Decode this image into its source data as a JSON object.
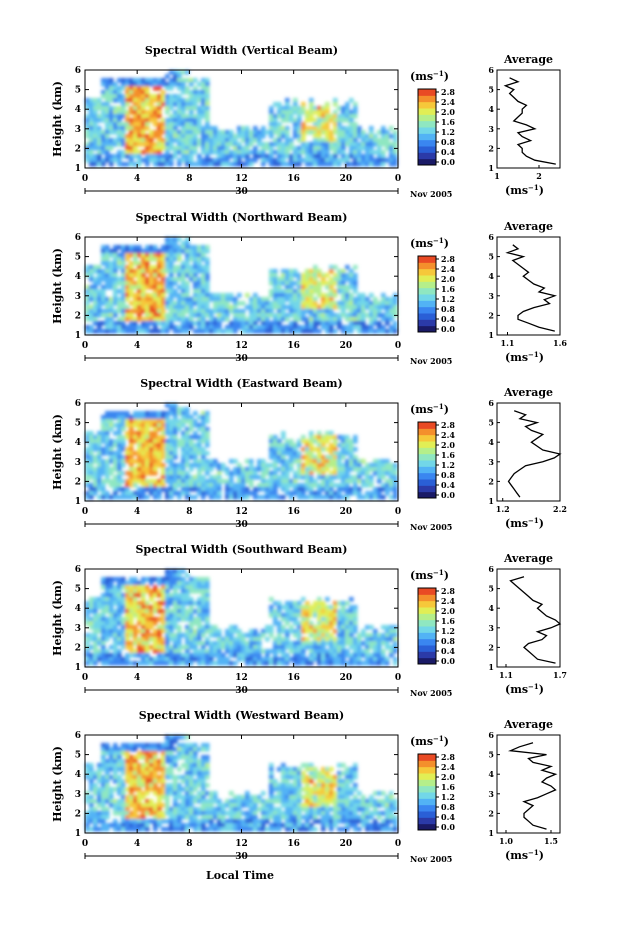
{
  "figure": {
    "xlabel": "Local Time",
    "date_label": "Nov 2005",
    "day_label": "30",
    "colorbar_label": "(ms",
    "colorbar_exp": "−1",
    "avg_title": "Average",
    "avg_unit": "(ms",
    "avg_unit_exp": "−1",
    "colors": {
      "colormap": [
        "#1a1a66",
        "#2b3aa8",
        "#2a5fd6",
        "#3a86f0",
        "#52b3f5",
        "#72d7e8",
        "#8fe7c1",
        "#b5ef8a",
        "#e1ee55",
        "#f6c83a",
        "#f48f2c",
        "#e94a24"
      ]
    }
  },
  "chart_data": [
    {
      "type": "heatmap",
      "title": "Spectral Width (Vertical Beam)",
      "ylabel": "Height (km)",
      "x_ticks": [
        "0",
        "4",
        "8",
        "12",
        "16",
        "20",
        "0"
      ],
      "x_range": [
        0,
        24
      ],
      "y_ticks": [
        "1",
        "2",
        "3",
        "4",
        "5",
        "6"
      ],
      "y_range": [
        1,
        6
      ],
      "colorbar_ticks": [
        "0.0",
        "0.4",
        "0.8",
        "1.2",
        "1.6",
        "2.0",
        "2.4",
        "2.8"
      ],
      "avg_profile": {
        "x_ticks": [
          "1",
          "2"
        ],
        "x_range": [
          1,
          2.5
        ],
        "height": [
          1.2,
          1.4,
          1.6,
          1.8,
          2.0,
          2.2,
          2.4,
          2.6,
          2.8,
          3.0,
          3.2,
          3.4,
          3.6,
          3.8,
          4.0,
          4.2,
          4.4,
          4.6,
          4.8,
          5.0,
          5.2,
          5.4,
          5.6
        ],
        "width": [
          2.4,
          1.9,
          1.7,
          1.6,
          1.6,
          1.5,
          1.8,
          1.6,
          1.5,
          1.9,
          1.7,
          1.4,
          1.5,
          1.6,
          1.6,
          1.7,
          1.5,
          1.4,
          1.3,
          1.4,
          1.2,
          1.5,
          1.3
        ]
      }
    },
    {
      "type": "heatmap",
      "title": "Spectral Width (Northward Beam)",
      "ylabel": "Height (km)",
      "x_ticks": [
        "0",
        "4",
        "8",
        "12",
        "16",
        "20",
        "0"
      ],
      "x_range": [
        0,
        24
      ],
      "y_ticks": [
        "1",
        "2",
        "3",
        "4",
        "5",
        "6"
      ],
      "y_range": [
        1,
        6
      ],
      "colorbar_ticks": [
        "0.0",
        "0.4",
        "0.8",
        "1.2",
        "1.6",
        "2.0",
        "2.4",
        "2.8"
      ],
      "avg_profile": {
        "x_ticks": [
          "1.1",
          "1.6"
        ],
        "x_range": [
          1.0,
          1.6
        ],
        "height": [
          1.2,
          1.4,
          1.6,
          1.8,
          2.0,
          2.2,
          2.4,
          2.6,
          2.8,
          3.0,
          3.2,
          3.4,
          3.6,
          3.8,
          4.0,
          4.2,
          4.4,
          4.6,
          4.8,
          5.0,
          5.2,
          5.4,
          5.6
        ],
        "width": [
          1.55,
          1.4,
          1.3,
          1.2,
          1.2,
          1.25,
          1.35,
          1.5,
          1.45,
          1.55,
          1.4,
          1.45,
          1.35,
          1.3,
          1.25,
          1.3,
          1.25,
          1.2,
          1.15,
          1.25,
          1.1,
          1.2,
          1.15
        ]
      }
    },
    {
      "type": "heatmap",
      "title": "Spectral Width (Eastward Beam)",
      "ylabel": "Height (km)",
      "x_ticks": [
        "0",
        "4",
        "8",
        "12",
        "16",
        "20",
        "0"
      ],
      "x_range": [
        0,
        24
      ],
      "y_ticks": [
        "1",
        "2",
        "3",
        "4",
        "5",
        "6"
      ],
      "y_range": [
        1,
        6
      ],
      "colorbar_ticks": [
        "0.0",
        "0.4",
        "0.8",
        "1.2",
        "1.6",
        "2.0",
        "2.4",
        "2.8"
      ],
      "avg_profile": {
        "x_ticks": [
          "1.2",
          "2.2"
        ],
        "x_range": [
          1.1,
          2.2
        ],
        "height": [
          1.2,
          1.4,
          1.6,
          1.8,
          2.0,
          2.2,
          2.4,
          2.6,
          2.8,
          3.0,
          3.2,
          3.4,
          3.6,
          3.8,
          4.0,
          4.2,
          4.4,
          4.6,
          4.8,
          5.0,
          5.2,
          5.4,
          5.6
        ],
        "width": [
          1.5,
          1.45,
          1.4,
          1.35,
          1.3,
          1.35,
          1.4,
          1.5,
          1.6,
          1.9,
          2.1,
          2.2,
          1.9,
          1.8,
          1.7,
          1.8,
          1.9,
          1.7,
          1.6,
          1.8,
          1.5,
          1.6,
          1.4
        ]
      }
    },
    {
      "type": "heatmap",
      "title": "Spectral Width (Southward Beam)",
      "ylabel": "Height (km)",
      "x_ticks": [
        "0",
        "4",
        "8",
        "12",
        "16",
        "20",
        "0"
      ],
      "x_range": [
        0,
        24
      ],
      "y_ticks": [
        "1",
        "2",
        "3",
        "4",
        "5",
        "6"
      ],
      "y_range": [
        1,
        6
      ],
      "colorbar_ticks": [
        "0.0",
        "0.4",
        "0.8",
        "1.2",
        "1.6",
        "2.0",
        "2.4",
        "2.8"
      ],
      "avg_profile": {
        "x_ticks": [
          "1.1",
          "1.7"
        ],
        "x_range": [
          1.0,
          1.7
        ],
        "height": [
          1.2,
          1.4,
          1.6,
          1.8,
          2.0,
          2.2,
          2.4,
          2.6,
          2.8,
          3.0,
          3.2,
          3.4,
          3.6,
          3.8,
          4.0,
          4.2,
          4.4,
          4.6,
          4.8,
          5.0,
          5.2,
          5.4,
          5.6
        ],
        "width": [
          1.65,
          1.45,
          1.4,
          1.35,
          1.3,
          1.35,
          1.5,
          1.55,
          1.45,
          1.6,
          1.7,
          1.65,
          1.55,
          1.5,
          1.45,
          1.5,
          1.4,
          1.35,
          1.3,
          1.25,
          1.2,
          1.15,
          1.3
        ]
      }
    },
    {
      "type": "heatmap",
      "title": "Spectral Width (Westward Beam)",
      "ylabel": "Height (km)",
      "x_ticks": [
        "0",
        "4",
        "8",
        "12",
        "16",
        "20",
        "0"
      ],
      "x_range": [
        0,
        24
      ],
      "y_ticks": [
        "1",
        "2",
        "3",
        "4",
        "5",
        "6"
      ],
      "y_range": [
        1,
        6
      ],
      "colorbar_ticks": [
        "0.0",
        "0.4",
        "0.8",
        "1.2",
        "1.6",
        "2.0",
        "2.4",
        "2.8"
      ],
      "avg_profile": {
        "x_ticks": [
          "1.0",
          "1.5"
        ],
        "x_range": [
          0.9,
          1.6
        ],
        "height": [
          1.2,
          1.4,
          1.6,
          1.8,
          2.0,
          2.2,
          2.4,
          2.6,
          2.8,
          3.0,
          3.2,
          3.4,
          3.6,
          3.8,
          4.0,
          4.2,
          4.4,
          4.6,
          4.8,
          5.0,
          5.2,
          5.4,
          5.6
        ],
        "width": [
          1.45,
          1.3,
          1.25,
          1.2,
          1.2,
          1.25,
          1.3,
          1.2,
          1.35,
          1.45,
          1.55,
          1.5,
          1.4,
          1.45,
          1.55,
          1.4,
          1.5,
          1.3,
          1.25,
          1.45,
          1.05,
          1.15,
          1.3
        ]
      }
    }
  ]
}
